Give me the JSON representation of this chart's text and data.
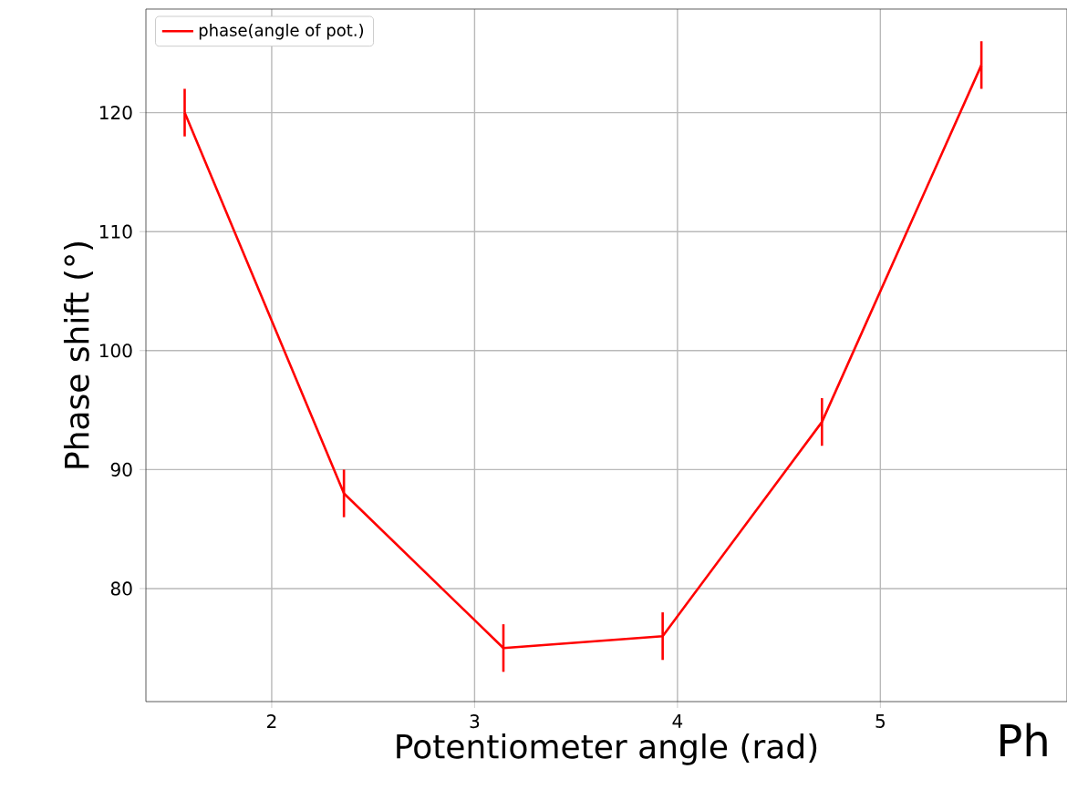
{
  "chart_data": {
    "type": "line",
    "xlabel": "Potentiometer angle (rad)",
    "ylabel": "Phase shift (°)",
    "annotations": [
      "Ph"
    ],
    "x": [
      1.571,
      2.356,
      3.142,
      3.927,
      4.712,
      5.498
    ],
    "series": [
      {
        "name": "phase(angle of pot.)",
        "color": "#ff0000",
        "values": [
          120,
          88,
          75,
          76,
          94,
          124
        ],
        "errors": [
          2,
          2,
          2,
          2,
          2,
          2
        ]
      }
    ],
    "xlim": [
      1.38,
      5.92
    ],
    "ylim": [
      70.5,
      128.7
    ],
    "xticks": [
      2,
      3,
      4,
      5
    ],
    "yticks": [
      80,
      90,
      100,
      110,
      120
    ],
    "grid": true,
    "legend": "top left",
    "marker": "none",
    "line_style": "solid"
  }
}
